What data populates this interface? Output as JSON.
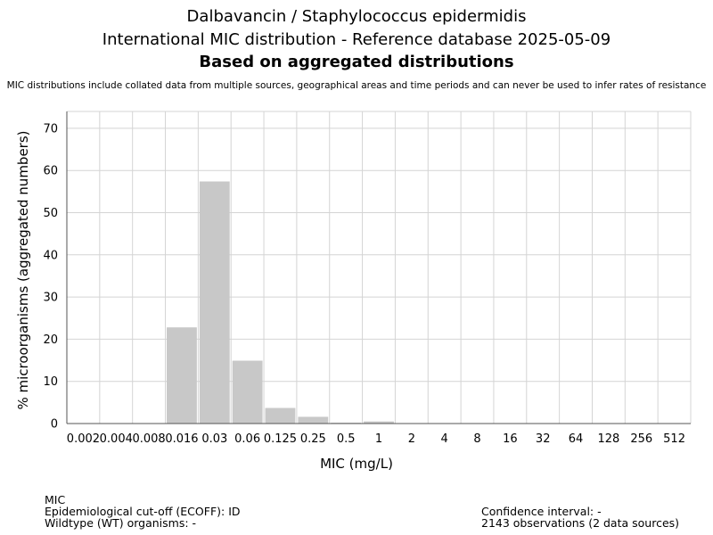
{
  "title": {
    "line1": "Dalbavancin / Staphylococcus epidermidis",
    "line2": "International MIC distribution - Reference database 2025-05-09",
    "line3": "Based on aggregated distributions"
  },
  "disclaimer": "MIC distributions include collated data from multiple sources, geographical areas and time periods and can never be used to infer rates of resistance",
  "chart_data": {
    "type": "bar",
    "xlabel": "MIC (mg/L)",
    "ylabel": "% microorganisms (aggregated numbers)",
    "ylim": [
      0,
      74
    ],
    "yticks": [
      0,
      10,
      20,
      30,
      40,
      50,
      60,
      70
    ],
    "grid": true,
    "categories": [
      "0.002",
      "0.004",
      "0.008",
      "0.016",
      "0.03",
      "0.06",
      "0.125",
      "0.25",
      "0.5",
      "1",
      "2",
      "4",
      "8",
      "16",
      "32",
      "64",
      "128",
      "256",
      "512"
    ],
    "values": [
      0,
      0,
      0,
      22.8,
      57.4,
      14.9,
      3.7,
      1.6,
      0.2,
      0.5,
      0,
      0,
      0,
      0,
      0,
      0,
      0,
      0,
      0
    ],
    "bar_color": "#c8c8c8",
    "grid_color": "#d4d4d4",
    "axis_color": "#555555"
  },
  "footer": {
    "mic": "MIC",
    "ecoff": "Epidemiological cut-off (ECOFF): ID",
    "wildtype": "Wildtype (WT) organisms:  -",
    "confidence": "Confidence interval: -",
    "observations": "2143 observations (2 data sources)"
  }
}
